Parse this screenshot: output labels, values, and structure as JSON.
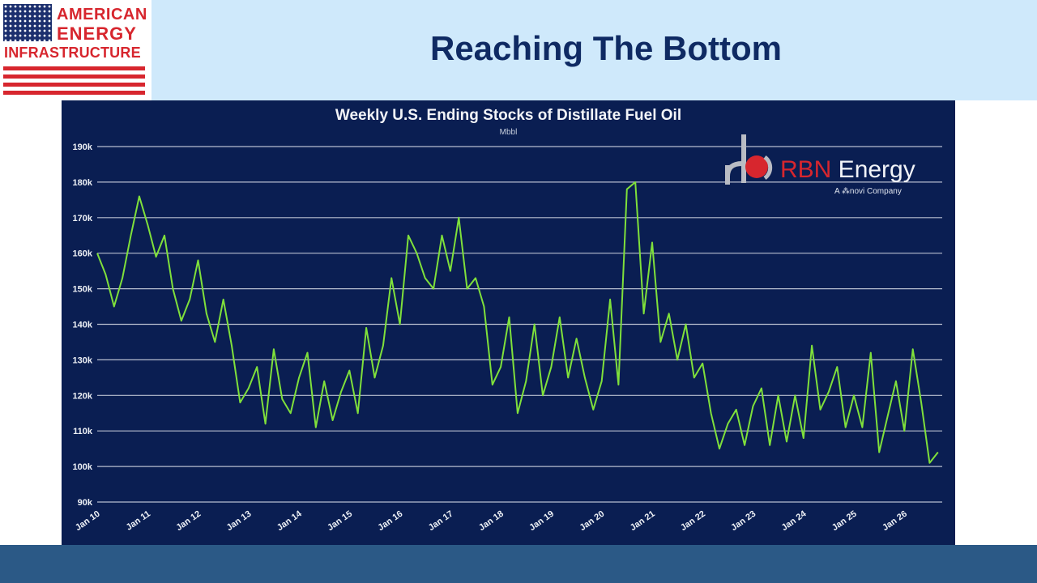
{
  "slide": {
    "title": "Reaching The Bottom"
  },
  "logo": {
    "line1": "AMERICAN",
    "line2": "ENERGY",
    "line3": "INFRASTRUCTURE",
    "colors": {
      "red": "#d7262e",
      "navy": "#1c2f6e"
    }
  },
  "watermark": {
    "brand_red": "RBN",
    "brand_white": " Energy",
    "tagline": "A ⁂novi Company"
  },
  "chart_data": {
    "type": "line",
    "title": "Weekly U.S. Ending Stocks of Distillate Fuel Oil",
    "subtitle": "Mbbl",
    "xlabel": "",
    "ylabel": "",
    "grid": true,
    "x_range": [
      "2010-01",
      "2026-10"
    ],
    "ylim": [
      90000,
      190000
    ],
    "y_ticks": [
      90000,
      100000,
      110000,
      120000,
      130000,
      140000,
      150000,
      160000,
      170000,
      180000,
      190000
    ],
    "y_tick_labels": [
      "90k",
      "100k",
      "110k",
      "120k",
      "130k",
      "140k",
      "150k",
      "160k",
      "170k",
      "180k",
      "190k"
    ],
    "x_ticks": [
      "2010-01",
      "2011-01",
      "2012-01",
      "2013-01",
      "2014-01",
      "2015-01",
      "2016-01",
      "2017-01",
      "2018-01",
      "2019-01",
      "2020-01",
      "2021-01",
      "2022-01",
      "2023-01",
      "2024-01",
      "2025-01",
      "2026-01"
    ],
    "x_tick_labels": [
      "Jan 10",
      "Jan 11",
      "Jan 12",
      "Jan 13",
      "Jan 14",
      "Jan 15",
      "Jan 16",
      "Jan 17",
      "Jan 18",
      "Jan 19",
      "Jan 20",
      "Jan 21",
      "Jan 22",
      "Jan 23",
      "Jan 24",
      "Jan 25",
      "Jan 26"
    ],
    "colors": {
      "background": "#0a1e52",
      "line": "#7fe03b",
      "grid": "#d7dce6"
    },
    "series": [
      {
        "x": [
          "2010-01",
          "2010-03",
          "2010-05",
          "2010-07",
          "2010-09",
          "2010-11",
          "2011-01",
          "2011-03",
          "2011-05",
          "2011-07",
          "2011-09",
          "2011-11",
          "2012-01",
          "2012-03",
          "2012-05",
          "2012-07",
          "2012-09",
          "2012-11",
          "2013-01",
          "2013-03",
          "2013-05",
          "2013-07",
          "2013-09",
          "2013-11",
          "2014-01",
          "2014-03",
          "2014-05",
          "2014-07",
          "2014-09",
          "2014-11",
          "2015-01",
          "2015-03",
          "2015-05",
          "2015-07",
          "2015-09",
          "2015-11",
          "2016-01",
          "2016-03",
          "2016-05",
          "2016-07",
          "2016-09",
          "2016-11",
          "2017-01",
          "2017-03",
          "2017-05",
          "2017-07",
          "2017-09",
          "2017-11",
          "2018-01",
          "2018-03",
          "2018-05",
          "2018-07",
          "2018-09",
          "2018-11",
          "2019-01",
          "2019-03",
          "2019-05",
          "2019-07",
          "2019-09",
          "2019-11",
          "2020-01",
          "2020-03",
          "2020-05",
          "2020-07",
          "2020-09",
          "2020-11",
          "2021-01",
          "2021-03",
          "2021-05",
          "2021-07",
          "2021-09",
          "2021-11",
          "2022-01",
          "2022-03",
          "2022-05",
          "2022-07",
          "2022-09",
          "2022-11",
          "2023-01",
          "2023-03",
          "2023-05",
          "2023-07",
          "2023-09",
          "2023-11",
          "2024-01",
          "2024-03",
          "2024-05",
          "2024-07",
          "2024-09",
          "2024-11",
          "2025-01",
          "2025-03",
          "2025-05",
          "2025-07",
          "2025-09",
          "2025-11",
          "2026-01",
          "2026-03",
          "2026-05",
          "2026-07",
          "2026-09"
        ],
        "values": [
          160000,
          154000,
          145000,
          153000,
          165000,
          176000,
          168000,
          159000,
          165000,
          150000,
          141000,
          147000,
          158000,
          143000,
          135000,
          147000,
          134000,
          118000,
          122000,
          128000,
          112000,
          133000,
          119000,
          115000,
          125000,
          132000,
          111000,
          124000,
          113000,
          121000,
          127000,
          115000,
          139000,
          125000,
          134000,
          153000,
          140000,
          165000,
          160000,
          153000,
          150000,
          165000,
          155000,
          170000,
          150000,
          153000,
          145000,
          123000,
          128000,
          142000,
          115000,
          124000,
          140000,
          120000,
          128000,
          142000,
          125000,
          136000,
          125000,
          116000,
          124000,
          147000,
          123000,
          178000,
          180000,
          143000,
          163000,
          135000,
          143000,
          130000,
          140000,
          125000,
          129000,
          115000,
          105000,
          112000,
          116000,
          106000,
          117000,
          122000,
          106000,
          120000,
          107000,
          120000,
          108000,
          134000,
          116000,
          121000,
          128000,
          111000,
          120000,
          111000,
          132000,
          104000,
          114000,
          124000,
          110000,
          133000,
          118000,
          101000,
          104000
        ]
      }
    ]
  }
}
